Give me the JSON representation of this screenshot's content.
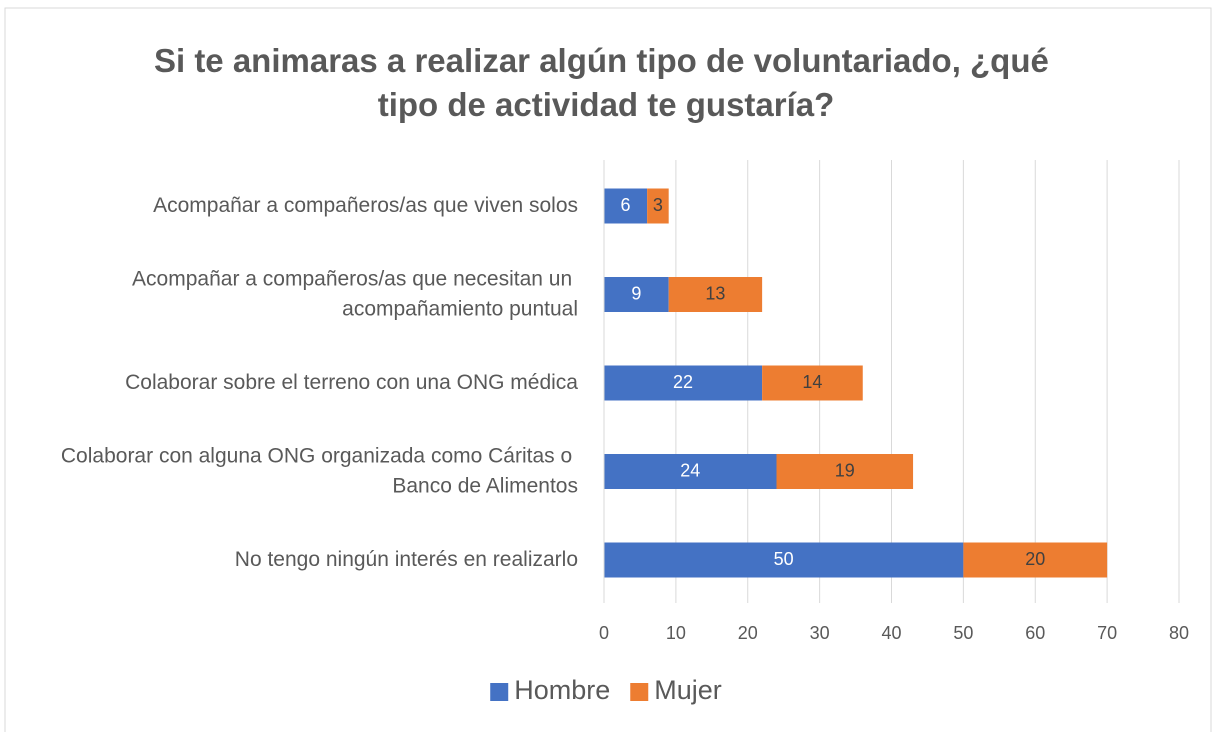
{
  "chart_data": {
    "type": "stacked_barh",
    "title": "Si te animaras a realizar algún tipo de voluntariado, ¿qué tipo de actividad te gustaría?",
    "categories": [
      "Acompañar a compañeros/as que viven solos",
      "Acompañar a compañeros/as que necesitan un acompañamiento puntual",
      "Colaborar sobre el terreno con una ONG médica",
      "Colaborar con alguna ONG organizada como Cáritas o Banco de Alimentos",
      "No tengo ningún interés en realizarlo"
    ],
    "series": [
      {
        "name": "Hombre",
        "color": "#4472c4",
        "values": [
          6,
          9,
          22,
          24,
          50
        ]
      },
      {
        "name": "Mujer",
        "color": "#ed7d31",
        "values": [
          3,
          13,
          14,
          19,
          20
        ]
      }
    ],
    "xlim": [
      0,
      80
    ],
    "xticks": [
      0,
      10,
      20,
      30,
      40,
      50,
      60,
      70,
      80
    ],
    "grid": true,
    "legend": "bottom"
  }
}
